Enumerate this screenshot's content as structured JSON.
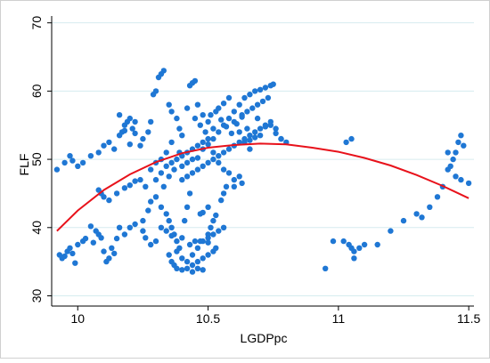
{
  "chart_data": {
    "type": "scatter",
    "title": "",
    "xlabel": "LGDPpc",
    "ylabel": "FLF",
    "xlim": [
      9.9,
      11.52
    ],
    "ylim": [
      28.5,
      71
    ],
    "x_ticks": [
      10,
      10.5,
      11,
      11.5
    ],
    "x_tick_labels": [
      "10",
      "10.5",
      "11",
      "11.5"
    ],
    "y_ticks": [
      30,
      40,
      50,
      60,
      70
    ],
    "y_tick_labels": [
      "30",
      "40",
      "50",
      "60",
      "70"
    ],
    "grid": "horizontal",
    "legend": "none",
    "colors": {
      "points": "#1f77d4",
      "fit_line": "#e8121b",
      "grid": "#d6ecef",
      "axis": "#000000",
      "outer_frame": "#d0d0d0"
    },
    "series": [
      {
        "type": "scatter",
        "points": [
          [
            9.93,
            36.0
          ],
          [
            9.94,
            35.5
          ],
          [
            9.95,
            35.8
          ],
          [
            9.96,
            36.5
          ],
          [
            9.97,
            37.0
          ],
          [
            9.98,
            36.2
          ],
          [
            9.99,
            34.8
          ],
          [
            10.0,
            37.5
          ],
          [
            10.02,
            38.0
          ],
          [
            10.03,
            38.4
          ],
          [
            10.05,
            40.2
          ],
          [
            10.06,
            37.8
          ],
          [
            10.07,
            39.5
          ],
          [
            10.08,
            39.0
          ],
          [
            10.09,
            38.5
          ],
          [
            10.1,
            36.5
          ],
          [
            10.11,
            35.0
          ],
          [
            10.12,
            35.5
          ],
          [
            10.13,
            37.0
          ],
          [
            10.14,
            36.2
          ],
          [
            10.15,
            38.4
          ],
          [
            10.16,
            40.0
          ],
          [
            10.18,
            39.0
          ],
          [
            10.2,
            40.0
          ],
          [
            10.22,
            40.5
          ],
          [
            10.25,
            41.0
          ],
          [
            10.27,
            42.5
          ],
          [
            10.28,
            43.8
          ],
          [
            10.3,
            44.5
          ],
          [
            10.32,
            43.0
          ],
          [
            10.34,
            42.0
          ],
          [
            10.35,
            41.0
          ],
          [
            10.36,
            40.0
          ],
          [
            10.37,
            39.0
          ],
          [
            10.38,
            38.0
          ],
          [
            10.39,
            37.0
          ],
          [
            10.4,
            38.5
          ],
          [
            10.41,
            41.0
          ],
          [
            10.42,
            43.0
          ],
          [
            10.43,
            45.0
          ],
          [
            10.35,
            36.0
          ],
          [
            10.36,
            35.0
          ],
          [
            10.37,
            34.5
          ],
          [
            10.38,
            34.0
          ],
          [
            10.4,
            33.8
          ],
          [
            10.42,
            34.0
          ],
          [
            10.44,
            34.5
          ],
          [
            10.46,
            35.0
          ],
          [
            10.48,
            35.5
          ],
          [
            10.5,
            36.0
          ],
          [
            10.52,
            36.5
          ],
          [
            10.53,
            37.0
          ],
          [
            10.5,
            37.8
          ],
          [
            10.47,
            38.0
          ],
          [
            10.45,
            38.0
          ],
          [
            10.43,
            37.5
          ],
          [
            10.5,
            39.0
          ],
          [
            10.51,
            40.0
          ],
          [
            10.52,
            41.0
          ],
          [
            10.53,
            41.8
          ],
          [
            10.47,
            42.0
          ],
          [
            10.48,
            42.2
          ],
          [
            10.5,
            43.0
          ],
          [
            10.55,
            44.0
          ],
          [
            10.56,
            45.0
          ],
          [
            10.57,
            46.0
          ],
          [
            10.6,
            47.0
          ],
          [
            10.62,
            47.5
          ],
          [
            10.63,
            46.5
          ],
          [
            10.6,
            46.0
          ],
          [
            10.4,
            47.0
          ],
          [
            10.42,
            47.5
          ],
          [
            10.44,
            48.0
          ],
          [
            10.46,
            48.5
          ],
          [
            10.48,
            49.0
          ],
          [
            10.5,
            49.5
          ],
          [
            10.52,
            50.0
          ],
          [
            10.54,
            50.5
          ],
          [
            10.56,
            51.0
          ],
          [
            10.58,
            51.5
          ],
          [
            10.6,
            52.0
          ],
          [
            10.62,
            52.5
          ],
          [
            10.64,
            53.0
          ],
          [
            10.66,
            53.5
          ],
          [
            10.68,
            54.0
          ],
          [
            10.7,
            54.5
          ],
          [
            10.72,
            55.0
          ],
          [
            10.74,
            55.0
          ],
          [
            10.76,
            54.5
          ],
          [
            10.78,
            53.0
          ],
          [
            10.3,
            47.0
          ],
          [
            10.32,
            48.0
          ],
          [
            10.34,
            49.0
          ],
          [
            10.36,
            49.5
          ],
          [
            10.38,
            50.0
          ],
          [
            10.4,
            50.5
          ],
          [
            10.42,
            51.0
          ],
          [
            10.44,
            51.5
          ],
          [
            10.46,
            52.0
          ],
          [
            10.48,
            52.5
          ],
          [
            10.5,
            53.0
          ],
          [
            10.52,
            53.0
          ],
          [
            10.54,
            54.0
          ],
          [
            10.56,
            55.0
          ],
          [
            10.58,
            56.0
          ],
          [
            10.6,
            57.0
          ],
          [
            10.62,
            58.0
          ],
          [
            10.64,
            59.0
          ],
          [
            10.66,
            59.5
          ],
          [
            10.68,
            60.0
          ],
          [
            10.7,
            60.2
          ],
          [
            10.72,
            60.5
          ],
          [
            10.74,
            60.8
          ],
          [
            10.75,
            61.0
          ],
          [
            10.73,
            59.0
          ],
          [
            10.71,
            58.5
          ],
          [
            10.69,
            58.0
          ],
          [
            10.67,
            57.5
          ],
          [
            10.65,
            57.0
          ],
          [
            10.63,
            56.5
          ],
          [
            10.16,
            53.5
          ],
          [
            10.17,
            54.0
          ],
          [
            10.18,
            55.0
          ],
          [
            10.19,
            55.5
          ],
          [
            10.2,
            56.0
          ],
          [
            10.21,
            54.5
          ],
          [
            10.22,
            53.8
          ],
          [
            10.16,
            56.5
          ],
          [
            10.18,
            54.2
          ],
          [
            10.2,
            52.2
          ],
          [
            10.22,
            55.5
          ],
          [
            10.24,
            52.0
          ],
          [
            10.25,
            53.0
          ],
          [
            10.27,
            54.0
          ],
          [
            10.28,
            55.5
          ],
          [
            10.29,
            59.5
          ],
          [
            10.3,
            60.0
          ],
          [
            10.31,
            62.0
          ],
          [
            10.32,
            62.5
          ],
          [
            10.33,
            63.0
          ],
          [
            10.35,
            58.0
          ],
          [
            10.36,
            57.0
          ],
          [
            10.38,
            56.0
          ],
          [
            10.39,
            54.5
          ],
          [
            10.4,
            53.5
          ],
          [
            10.42,
            57.5
          ],
          [
            10.43,
            60.8
          ],
          [
            10.44,
            61.2
          ],
          [
            10.45,
            61.5
          ],
          [
            10.46,
            58.0
          ],
          [
            10.48,
            56.5
          ],
          [
            10.5,
            55.5
          ],
          [
            10.52,
            54.5
          ],
          [
            10.54,
            57.5
          ],
          [
            10.56,
            58.2
          ],
          [
            10.58,
            59.0
          ],
          [
            10.6,
            55.5
          ],
          [
            10.62,
            54.0
          ],
          [
            10.64,
            52.5
          ],
          [
            10.66,
            51.5
          ],
          [
            9.92,
            48.5
          ],
          [
            9.95,
            49.5
          ],
          [
            9.97,
            50.5
          ],
          [
            9.98,
            49.8
          ],
          [
            10.0,
            49.0
          ],
          [
            10.02,
            49.5
          ],
          [
            10.05,
            50.5
          ],
          [
            10.08,
            51.0
          ],
          [
            10.1,
            52.0
          ],
          [
            10.12,
            52.5
          ],
          [
            10.14,
            51.5
          ],
          [
            10.08,
            45.5
          ],
          [
            10.09,
            45.0
          ],
          [
            10.1,
            44.5
          ],
          [
            10.12,
            44.0
          ],
          [
            10.15,
            45.0
          ],
          [
            10.18,
            45.8
          ],
          [
            10.2,
            46.2
          ],
          [
            10.22,
            46.8
          ],
          [
            10.24,
            47.0
          ],
          [
            10.26,
            46.0
          ],
          [
            10.28,
            48.5
          ],
          [
            10.3,
            49.5
          ],
          [
            10.32,
            50.0
          ],
          [
            10.34,
            51.0
          ],
          [
            10.36,
            52.5
          ],
          [
            10.33,
            46.0
          ],
          [
            10.35,
            47.5
          ],
          [
            10.37,
            48.5
          ],
          [
            10.39,
            51.0
          ],
          [
            10.7,
            53.5
          ],
          [
            10.72,
            54.8
          ],
          [
            10.74,
            55.5
          ],
          [
            10.76,
            53.8
          ],
          [
            10.78,
            53.0
          ],
          [
            10.8,
            52.5
          ],
          [
            10.65,
            54.5
          ],
          [
            10.66,
            52.8
          ],
          [
            10.68,
            53.2
          ],
          [
            10.69,
            56.0
          ],
          [
            10.95,
            34.0
          ],
          [
            10.98,
            38.0
          ],
          [
            11.02,
            38.0
          ],
          [
            11.04,
            37.5
          ],
          [
            11.05,
            37.0
          ],
          [
            11.06,
            36.5
          ],
          [
            11.08,
            37.0
          ],
          [
            11.1,
            37.5
          ],
          [
            11.15,
            37.5
          ],
          [
            11.2,
            39.5
          ],
          [
            11.25,
            41.0
          ],
          [
            11.3,
            42.0
          ],
          [
            11.32,
            41.5
          ],
          [
            11.35,
            43.0
          ],
          [
            11.38,
            44.5
          ],
          [
            11.4,
            46.0
          ],
          [
            11.42,
            48.5
          ],
          [
            11.44,
            50.0
          ],
          [
            11.45,
            51.0
          ],
          [
            11.46,
            52.5
          ],
          [
            11.47,
            53.5
          ],
          [
            11.48,
            52.0
          ],
          [
            11.42,
            51.0
          ],
          [
            11.43,
            49.0
          ],
          [
            11.45,
            47.5
          ],
          [
            11.47,
            47.0
          ],
          [
            11.5,
            46.5
          ],
          [
            11.03,
            52.5
          ],
          [
            11.05,
            53.0
          ],
          [
            11.06,
            35.5
          ],
          [
            10.44,
            33.5
          ],
          [
            10.46,
            34.0
          ],
          [
            10.48,
            33.8
          ],
          [
            10.25,
            39.5
          ],
          [
            10.26,
            38.5
          ],
          [
            10.28,
            37.5
          ],
          [
            10.3,
            38.0
          ],
          [
            10.32,
            40.0
          ],
          [
            10.34,
            39.5
          ],
          [
            10.36,
            38.8
          ],
          [
            10.38,
            36.5
          ],
          [
            10.4,
            35.5
          ],
          [
            10.42,
            35.0
          ],
          [
            10.44,
            36.0
          ],
          [
            10.46,
            37.0
          ],
          [
            10.48,
            38.0
          ],
          [
            10.5,
            38.5
          ],
          [
            10.52,
            39.0
          ],
          [
            10.54,
            39.5
          ],
          [
            10.56,
            40.0
          ],
          [
            10.45,
            56.0
          ],
          [
            10.47,
            55.0
          ],
          [
            10.49,
            54.0
          ],
          [
            10.51,
            56.5
          ],
          [
            10.53,
            57.0
          ],
          [
            10.55,
            55.8
          ],
          [
            10.57,
            54.8
          ],
          [
            10.59,
            53.8
          ],
          [
            10.61,
            55.2
          ],
          [
            10.63,
            56.2
          ],
          [
            10.4,
            49.0
          ],
          [
            10.42,
            49.5
          ],
          [
            10.44,
            50.0
          ],
          [
            10.46,
            50.2
          ],
          [
            10.48,
            51.5
          ],
          [
            10.5,
            52.2
          ],
          [
            10.52,
            51.0
          ],
          [
            10.54,
            49.5
          ],
          [
            10.56,
            48.5
          ],
          [
            10.58,
            48.0
          ]
        ]
      },
      {
        "type": "line",
        "points": [
          [
            9.92,
            39.5
          ],
          [
            10.0,
            42.5
          ],
          [
            10.1,
            45.5
          ],
          [
            10.2,
            47.8
          ],
          [
            10.3,
            49.6
          ],
          [
            10.4,
            50.9
          ],
          [
            10.5,
            51.7
          ],
          [
            10.6,
            52.1
          ],
          [
            10.7,
            52.3
          ],
          [
            10.8,
            52.2
          ],
          [
            10.9,
            51.7
          ],
          [
            11.0,
            51.1
          ],
          [
            11.1,
            50.2
          ],
          [
            11.2,
            49.1
          ],
          [
            11.3,
            47.7
          ],
          [
            11.4,
            46.1
          ],
          [
            11.5,
            44.3
          ]
        ]
      }
    ]
  }
}
